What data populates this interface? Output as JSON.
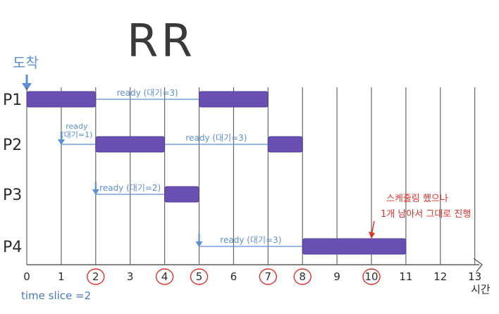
{
  "title": "RR",
  "arrival_label": "도착",
  "time_slice_label": "time slice =2",
  "x_axis_unit": "시간",
  "ticks": [
    "0",
    "1",
    "2",
    "3",
    "4",
    "5",
    "6",
    "7",
    "8",
    "9",
    "10",
    "11",
    "12",
    "13"
  ],
  "circled_ticks": [
    2,
    4,
    5,
    7,
    8,
    10
  ],
  "processes": [
    {
      "name": "P1",
      "arrival": 0,
      "bursts": [
        [
          0,
          2
        ],
        [
          5,
          7
        ]
      ],
      "waits": [
        {
          "from": 2,
          "to": 5,
          "label": "ready (대기=3)"
        }
      ]
    },
    {
      "name": "P2",
      "arrival": 1,
      "bursts": [
        [
          2,
          4
        ],
        [
          7,
          8
        ]
      ],
      "waits": [
        {
          "from": 1,
          "to": 2,
          "label": "ready\n(대기=1)"
        },
        {
          "from": 4,
          "to": 7,
          "label": "ready (대기=3)"
        }
      ]
    },
    {
      "name": "P3",
      "arrival": 2,
      "bursts": [
        [
          4,
          5
        ]
      ],
      "waits": [
        {
          "from": 2,
          "to": 4,
          "label": "ready (대기=2)"
        }
      ]
    },
    {
      "name": "P4",
      "arrival": 5,
      "bursts": [
        [
          8,
          11
        ]
      ],
      "waits": [
        {
          "from": 5,
          "to": 8,
          "label": "ready (대기=3)"
        }
      ]
    }
  ],
  "annotation": {
    "lines": [
      "스케줄링 했으나",
      "1개 남아서 그대로 진행"
    ],
    "at_time": 10
  },
  "colors": {
    "bar": "#6a4fb3",
    "bar_stroke": "#55409a",
    "ink": "#2b2b2b",
    "grid": "#5a5a5a",
    "blue": "#5b8fd6",
    "red": "#e0302a"
  }
}
